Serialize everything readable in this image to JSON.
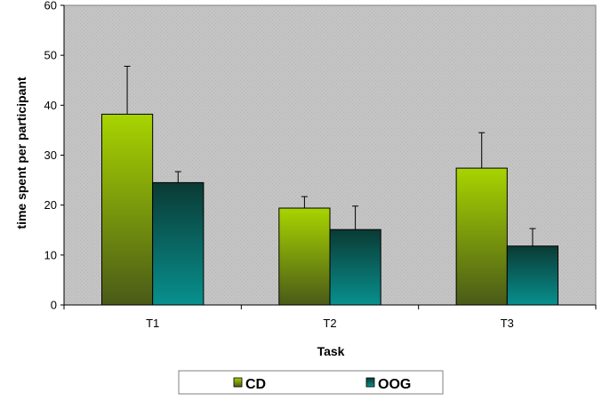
{
  "chart_data": {
    "type": "bar",
    "title": "",
    "xlabel": "Task",
    "ylabel": "time spent per participant",
    "categories": [
      "T1",
      "T2",
      "T3"
    ],
    "ylim": [
      0,
      60
    ],
    "yticks": [
      0,
      10,
      20,
      30,
      40,
      50,
      60
    ],
    "grid": "off",
    "legend_position": "bottom",
    "series": [
      {
        "name": "CD",
        "values": [
          38.2,
          19.4,
          27.4
        ],
        "error": [
          9.6,
          2.3,
          7.1
        ],
        "color_top": "#a8d400",
        "color_bottom": "#4a5a18"
      },
      {
        "name": "OOG",
        "values": [
          24.5,
          15.1,
          11.8
        ],
        "error": [
          2.2,
          4.7,
          3.5
        ],
        "color_top": "#0a3a34",
        "color_bottom": "#08908e"
      }
    ],
    "plot_background": "#c0c0c0"
  }
}
